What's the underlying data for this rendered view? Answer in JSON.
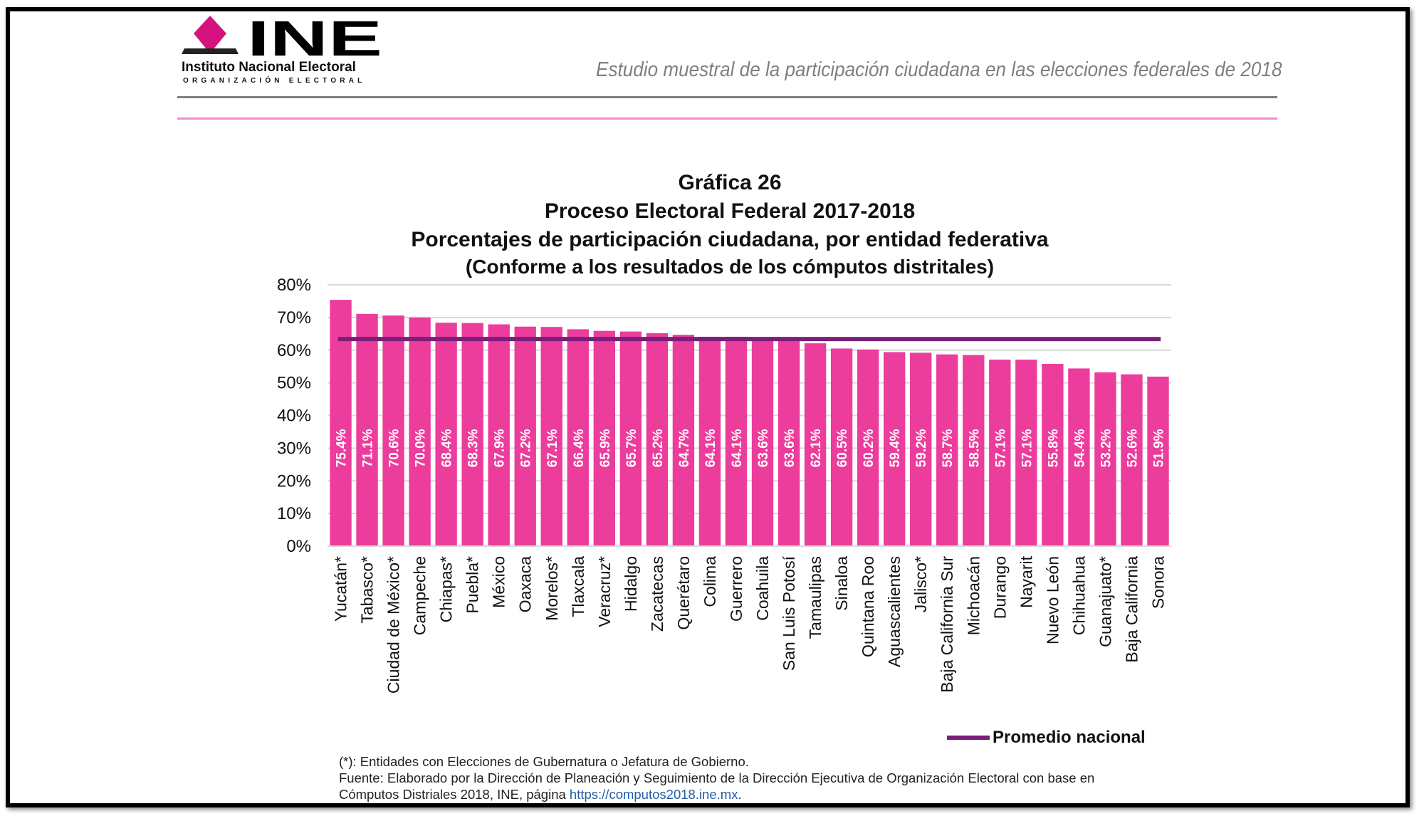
{
  "header": {
    "logo_text": "INE",
    "logo_name": "Instituto Nacional Electoral",
    "logo_org": "ORGANIZACIÓN ELECTORAL",
    "study_title": "Estudio muestral de la participación ciudadana en las elecciones federales de 2018"
  },
  "chart_data": {
    "type": "bar",
    "title": "Gráfica 26",
    "subtitle_lines": [
      "Proceso Electoral Federal 2017-2018",
      "Porcentajes de participación ciudadana, por entidad federativa",
      "(Conforme a los resultados de los cómputos distritales)"
    ],
    "categories": [
      "Yucatán*",
      "Tabasco*",
      "Ciudad de México*",
      "Campeche",
      "Chiapas*",
      "Puebla*",
      "México",
      "Oaxaca",
      "Morelos*",
      "Tlaxcala",
      "Veracruz*",
      "Hidalgo",
      "Zacatecas",
      "Querétaro",
      "Colima",
      "Guerrero",
      "Coahuila",
      "San Luis Potosí",
      "Tamaulipas",
      "Sinaloa",
      "Quintana Roo",
      "Aguascalientes",
      "Jalisco*",
      "Baja California Sur",
      "Michoacán",
      "Durango",
      "Nayarit",
      "Nuevo León",
      "Chihuahua",
      "Guanajuato*",
      "Baja California",
      "Sonora"
    ],
    "values": [
      75.4,
      71.1,
      70.6,
      70.0,
      68.4,
      68.3,
      67.9,
      67.2,
      67.1,
      66.4,
      65.9,
      65.7,
      65.2,
      64.7,
      64.1,
      64.1,
      63.6,
      63.6,
      62.1,
      60.5,
      60.2,
      59.4,
      59.2,
      58.7,
      58.5,
      57.1,
      57.1,
      55.8,
      54.4,
      53.2,
      52.6,
      51.9
    ],
    "data_labels": [
      "75.4%",
      "71.1%",
      "70.6%",
      "70.0%",
      "68.4%",
      "68.3%",
      "67.9%",
      "67.2%",
      "67.1%",
      "66.4%",
      "65.9%",
      "65.7%",
      "65.2%",
      "64.7%",
      "64.1%",
      "64.1%",
      "63.6%",
      "63.6%",
      "62.1%",
      "60.5%",
      "60.2%",
      "59.4%",
      "59.2%",
      "58.7%",
      "58.5%",
      "57.1%",
      "57.1%",
      "55.8%",
      "54.4%",
      "53.2%",
      "52.6%",
      "51.9%"
    ],
    "yticks": [
      "0%",
      "10%",
      "20%",
      "30%",
      "40%",
      "50%",
      "60%",
      "70%",
      "80%"
    ],
    "ylim": [
      0,
      80
    ],
    "grid": true,
    "bar_color": "#ec3c9c",
    "reference_line": {
      "name": "Promedio nacional",
      "value": 63.4,
      "color": "#7b1f7a"
    },
    "legend_position": "bottom-right"
  },
  "notes": {
    "line1": "(*): Entidades con Elecciones de Gubernatura o Jefatura de Gobierno.",
    "line2": "Fuente: Elaborado por la Dirección de Planeación y Seguimiento de la Dirección Ejecutiva de Organización Electoral con base en",
    "line3": "Cómputos Distriales 2018, INE, página ",
    "link": "https://computos2018.ine.mx",
    "line3_end": "."
  },
  "colors": {
    "brand_magenta": "#d6127f",
    "rule_pink": "#f08ad0",
    "rule_gray": "#7f7f7f"
  }
}
